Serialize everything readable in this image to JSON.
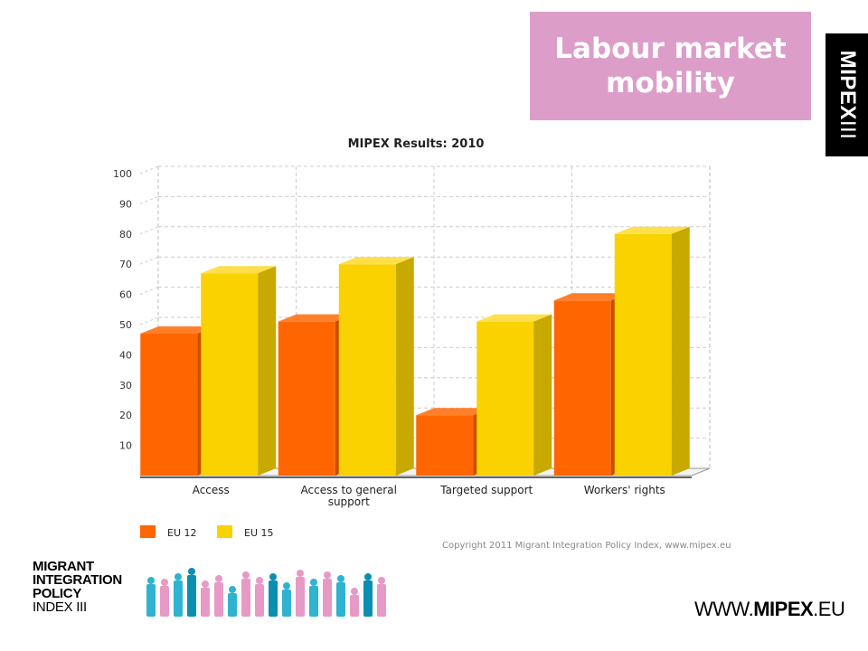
{
  "header": {
    "title": "Labour market mobility",
    "side_tab_bold": "MIPEX",
    "side_tab_roman": "III"
  },
  "chart_data": {
    "type": "bar",
    "title": "MIPEX Results: 2010",
    "categories": [
      "Access",
      "Access to general support",
      "Targeted support",
      "Workers' rights"
    ],
    "category_lines": [
      [
        "Access"
      ],
      [
        "Access to general",
        "support"
      ],
      [
        "Targeted support"
      ],
      [
        "Workers' rights"
      ]
    ],
    "series": [
      {
        "name": "EU 12",
        "values": [
          47,
          51,
          20,
          58
        ],
        "color": "#ff6600",
        "top": "#ff7f2a",
        "side": "#c84f00"
      },
      {
        "name": "EU 15",
        "values": [
          67,
          70,
          51,
          80
        ],
        "color": "#f9d200",
        "top": "#ffe04a",
        "side": "#c8a900"
      }
    ],
    "ylim": [
      0,
      100
    ],
    "yticks": [
      10,
      20,
      30,
      40,
      50,
      60,
      70,
      80,
      90,
      100
    ],
    "grid": true,
    "legend": "bottom-left",
    "copyright": "Copyright 2011 Migrant Integration Policy Index, www.mipex.eu"
  },
  "footer": {
    "logo_lines": [
      "MIGRANT",
      "INTEGRATION",
      "POLICY",
      "INDEX III"
    ],
    "url_prefix": "WWW.",
    "url_bold": "MIPEX",
    "url_suffix": ".EU"
  }
}
